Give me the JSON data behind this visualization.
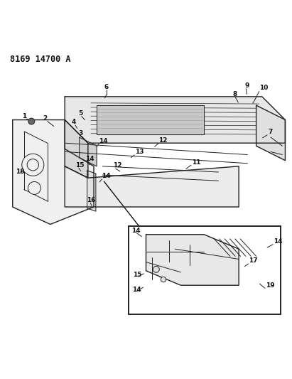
{
  "title_code": "8169 14700 A",
  "background_color": "#ffffff",
  "line_color": "#222222",
  "label_color": "#111111",
  "fig_width": 4.11,
  "fig_height": 5.33,
  "dpi": 100
}
